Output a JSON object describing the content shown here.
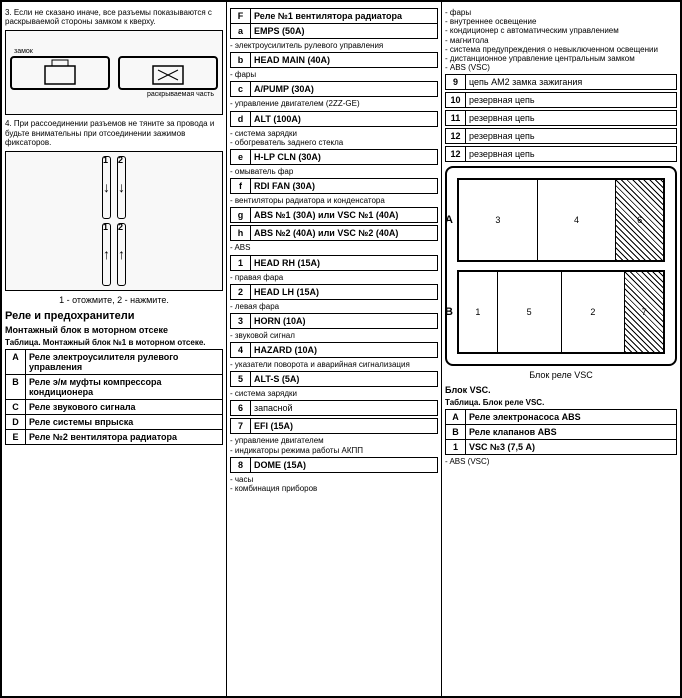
{
  "col1": {
    "note3": "3. Если не сказано иначе, все разъемы показываются с раскрываемой стороны замком к кверху.",
    "img1_labels": {
      "a": "замок",
      "b": "раскрываемая часть"
    },
    "note4": "4. При рассоединении разъемов не тяните за провода и будьте внимательны при отсоединении зажимов фиксаторов.",
    "caption1": "1 - отожмите, 2 - нажмите.",
    "section_title": "Реле и предохранители",
    "subsection": "Монтажный блок в моторном отсеке",
    "table_caption": "Таблица. Монтажный блок №1 в моторном отсеке.",
    "table1": [
      {
        "k": "A",
        "v": "Реле электроусилителя рулевого управления"
      },
      {
        "k": "B",
        "v": "Реле э/м муфты компрессора кондиционера"
      },
      {
        "k": "C",
        "v": "Реле звукового сигнала"
      },
      {
        "k": "D",
        "v": "Реле системы впрыска"
      },
      {
        "k": "E",
        "v": "Реле №2 вентилятора радиатора"
      }
    ]
  },
  "col2": {
    "rows_top": [
      {
        "k": "F",
        "v": "Реле №1 вентилятора радиатора"
      },
      {
        "k": "a",
        "v": "EMPS (50A)"
      }
    ],
    "note_a": "- электроусилитель рулевого управления",
    "rows_b": [
      {
        "k": "b",
        "v": "HEAD MAIN (40A)"
      }
    ],
    "note_b": "- фары",
    "rows_c": [
      {
        "k": "c",
        "v": "A/PUMP (30A)"
      }
    ],
    "note_c": "- управление двигателем (2ZZ-GE)",
    "rows_d": [
      {
        "k": "d",
        "v": "ALT (100A)"
      }
    ],
    "note_d": "- система зарядки\n- обогреватель заднего стекла",
    "rows_e": [
      {
        "k": "e",
        "v": "H-LP CLN (30A)"
      }
    ],
    "note_e": "- омыватель фар",
    "rows_f": [
      {
        "k": "f",
        "v": "RDI FAN (30A)"
      }
    ],
    "note_f": "- вентиляторы радиатора и конденсатора",
    "rows_g": [
      {
        "k": "g",
        "v": "ABS №1   (30A) или VSC №1   (40A)"
      }
    ],
    "rows_h": [
      {
        "k": "h",
        "v": "ABS №2   (40A) или VSC №2   (40A)"
      }
    ],
    "note_h": "- ABS",
    "rows_1": [
      {
        "k": "1",
        "v": "HEAD RH (15A)"
      }
    ],
    "note_1": "- правая фара",
    "rows_2": [
      {
        "k": "2",
        "v": "HEAD LH (15A)"
      }
    ],
    "note_2": "- левая фара",
    "rows_3": [
      {
        "k": "3",
        "v": "HORN (10A)"
      }
    ],
    "note_3": "- звуковой сигнал",
    "rows_4": [
      {
        "k": "4",
        "v": "HAZARD (10A)"
      }
    ],
    "note_4": "- указатели поворота и аварийная сигнализация",
    "rows_5": [
      {
        "k": "5",
        "v": "ALT-S (5A)"
      }
    ],
    "note_5": "- система зарядки",
    "rows_6": [
      {
        "k": "6",
        "v": "запасной"
      }
    ],
    "rows_7": [
      {
        "k": "7",
        "v": "EFI (15A)"
      }
    ],
    "note_7": "- управление двигателем\n- индикаторы режима работы АКПП",
    "rows_8": [
      {
        "k": "8",
        "v": "DOME (15A)"
      }
    ],
    "note_8": "- часы\n- комбинация приборов"
  },
  "col3": {
    "list_top": "- фары\n- внутреннее освещение\n- кондиционер с автоматическим управлением\n- магнитола\n- система предупреждения о невыключенном освещении\n- дистанционное управление центральным замком\n- ABS (VSC)",
    "rows_9": [
      {
        "k": "9",
        "v": "цепь AM2 замка зажигания"
      }
    ],
    "rows_10": [
      {
        "k": "10",
        "v": "резервная цепь"
      }
    ],
    "rows_11": [
      {
        "k": "11",
        "v": "резервная цепь"
      }
    ],
    "rows_12": [
      {
        "k": "12",
        "v": "резервная цепь"
      }
    ],
    "rows_12b": [
      {
        "k": "12",
        "v": "резервная цепь"
      }
    ],
    "vsc_caption": "Блок реле VSC",
    "vsc_cells_a": [
      "3",
      "4",
      "6"
    ],
    "vsc_cells_b": [
      "1",
      "5",
      "2",
      "7"
    ],
    "vsc_title": "Блок VSC.",
    "vsc_table_caption": "Таблица. Блок реле VSC.",
    "vsc_table": [
      {
        "k": "A",
        "v": "Реле электронасоса ABS"
      },
      {
        "k": "B",
        "v": "Реле клапанов ABS"
      },
      {
        "k": "1",
        "v": "VSC №3 (7,5 А)"
      }
    ],
    "vsc_footer": "- ABS (VSC)"
  }
}
